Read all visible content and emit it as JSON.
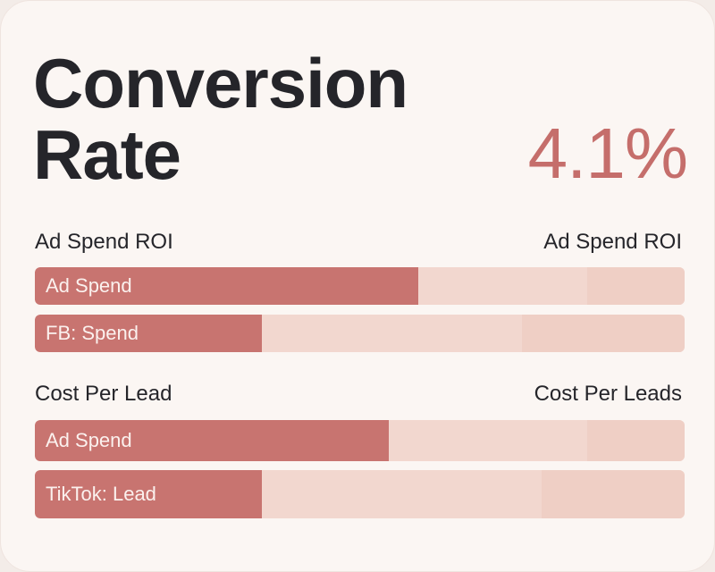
{
  "card": {
    "title_line1": "Conversion",
    "title_line2": "Rate",
    "kpi_value": "4.1%"
  },
  "sections": [
    {
      "left_label": "Ad Spend ROI",
      "right_label": "Ad Spend ROI",
      "bars": [
        {
          "label": "Ad Spend",
          "fill_fraction": 0.59,
          "secondary_fraction": 0.85
        },
        {
          "label": "FB: Spend",
          "fill_fraction": 0.35,
          "secondary_fraction": 0.75
        }
      ]
    },
    {
      "left_label": "Cost Per Lead",
      "right_label": "Cost Per Leads",
      "bars": [
        {
          "label": "Ad Spend",
          "fill_fraction": 0.545,
          "secondary_fraction": 0.85
        },
        {
          "label": "TikTok: Lead",
          "fill_fraction": 0.35,
          "secondary_fraction": 0.78
        }
      ]
    }
  ],
  "colors": {
    "accent": "#c87470",
    "kpi": "#c56e6b",
    "track": "#f4dcd4",
    "text": "#25252a"
  }
}
